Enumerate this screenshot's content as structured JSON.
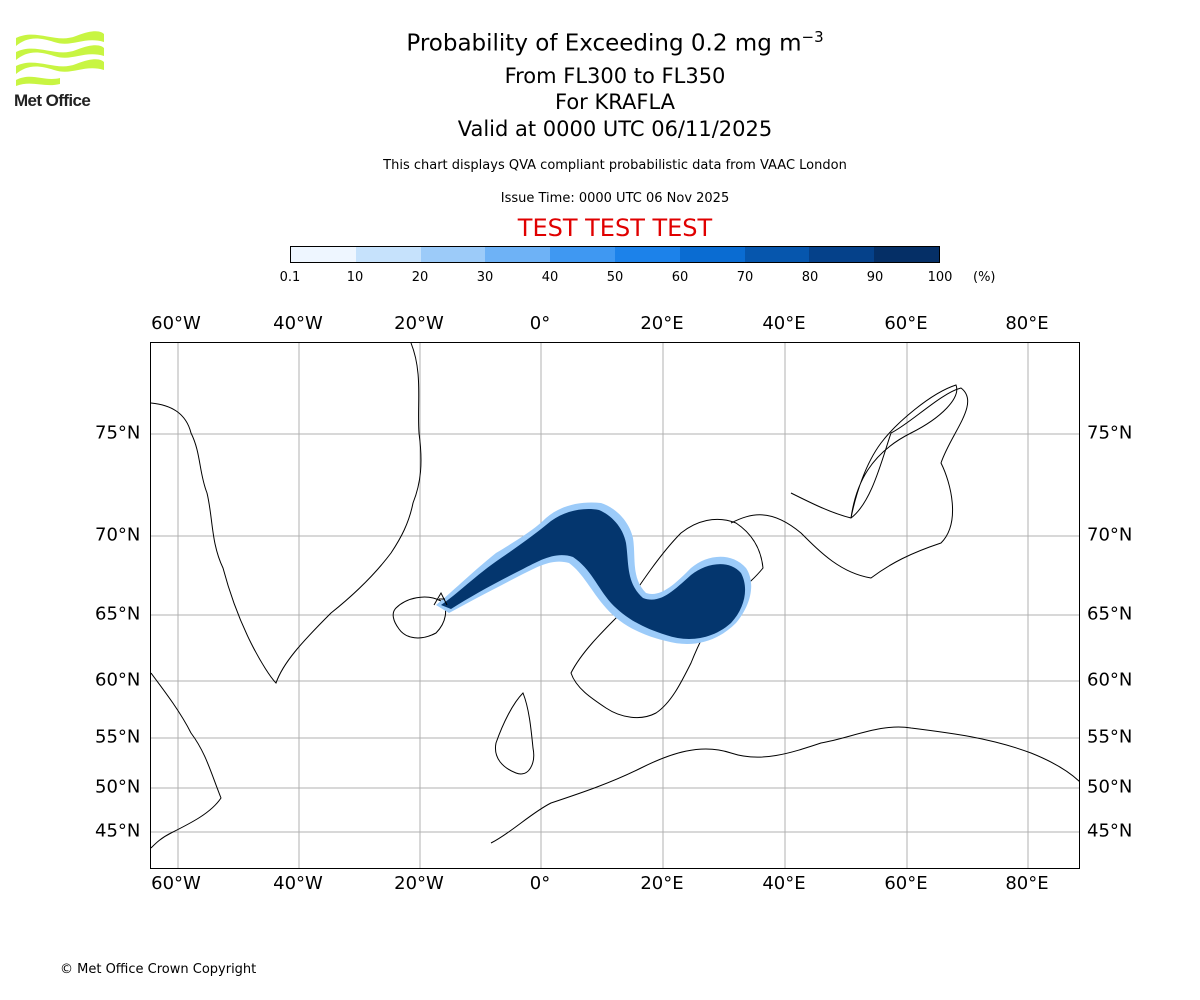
{
  "logo": {
    "text": "Met Office"
  },
  "title": {
    "line1_prefix": "Probability of Exceeding 0.2 mg m",
    "line1_exponent": "−3",
    "line2": "From FL300 to FL350",
    "line3": "For KRAFLA",
    "line4": "Valid at 0000 UTC 06/11/2025"
  },
  "subtitle": "This chart displays QVA compliant probabilistic data from VAAC London",
  "issue_time": "Issue Time: 0000 UTC 06 Nov 2025",
  "test_banner": "TEST TEST TEST",
  "colorbar": {
    "ticks": [
      "0.1",
      "10",
      "20",
      "30",
      "40",
      "50",
      "60",
      "70",
      "80",
      "90",
      "100"
    ],
    "unit": "(%)",
    "colors": [
      "#eef6ff",
      "#c6e2fc",
      "#9ccbf9",
      "#6eb2f6",
      "#3f98f2",
      "#1c82ea",
      "#0a6cd2",
      "#0656ad",
      "#05418a",
      "#052f66"
    ]
  },
  "map": {
    "lon_labels_top": [
      "60°W",
      "40°W",
      "20°W",
      "0°",
      "20°E",
      "40°E",
      "60°E",
      "80°E"
    ],
    "lon_labels_bottom": [
      "60°W",
      "40°W",
      "20°W",
      "0°",
      "20°E",
      "40°E",
      "60°E",
      "80°E"
    ],
    "lat_labels_left": [
      "75°N",
      "70°N",
      "65°N",
      "60°N",
      "55°N",
      "50°N",
      "45°N"
    ],
    "lat_labels_right": [
      "75°N",
      "70°N",
      "65°N",
      "60°N",
      "55°N",
      "50°N",
      "45°N"
    ],
    "plume_color": "#04366e",
    "source_volcano": "KRAFLA"
  },
  "copyright": "© Met Office Crown Copyright"
}
